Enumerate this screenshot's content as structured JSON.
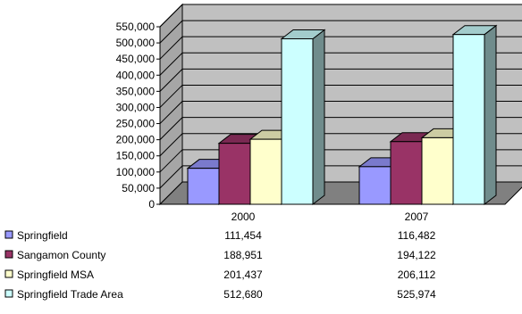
{
  "chart_data": {
    "type": "bar",
    "style": "3d-clustered-column",
    "categories": [
      "2000",
      "2007"
    ],
    "series": [
      {
        "name": "Springfield",
        "color": "#9999ff",
        "values": [
          111454,
          116482
        ],
        "labels": [
          "111,454",
          "116,482"
        ]
      },
      {
        "name": "Sangamon County",
        "color": "#993366",
        "values": [
          188951,
          194122
        ],
        "labels": [
          "188,951",
          "194,122"
        ]
      },
      {
        "name": "Springfield MSA",
        "color": "#ffffcc",
        "values": [
          201437,
          206112
        ],
        "labels": [
          "201,437",
          "206,112"
        ]
      },
      {
        "name": "Springfield Trade Area",
        "color": "#ccffff",
        "values": [
          512680,
          525974
        ],
        "labels": [
          "512,680",
          "525,974"
        ]
      }
    ],
    "ylim": [
      0,
      550000
    ],
    "yticks": [
      0,
      50000,
      100000,
      150000,
      200000,
      250000,
      300000,
      350000,
      400000,
      450000,
      500000,
      550000
    ],
    "ytick_labels": [
      "0",
      "50,000",
      "100,000",
      "150,000",
      "200,000",
      "250,000",
      "300,000",
      "350,000",
      "400,000",
      "450,000",
      "500,000",
      "550,000"
    ],
    "grid": true,
    "legend": "data-table-below",
    "colors": {
      "wall": "#c0c0c0",
      "floor": "#808080",
      "gridline": "#000000"
    }
  }
}
